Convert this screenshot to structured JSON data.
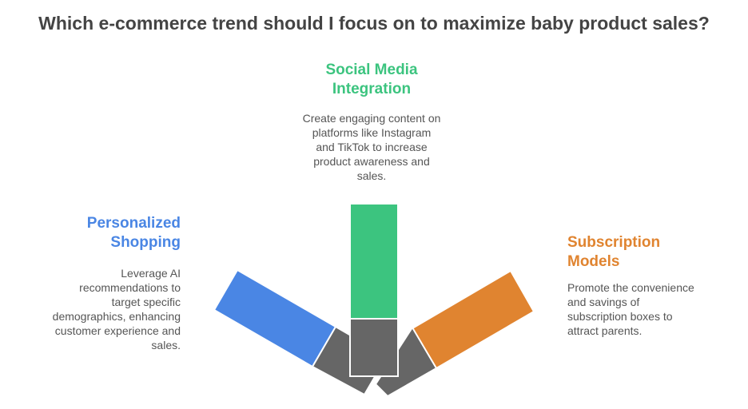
{
  "title": "Which e-commerce trend should I focus on to maximize baby product sales?",
  "options": {
    "social": {
      "heading": "Social Media\nIntegration",
      "description": "Create engaging content on\nplatforms like Instagram\nand TikTok to increase\nproduct awareness and\nsales.",
      "color": "#3cc47f"
    },
    "personalized": {
      "heading": "Personalized\nShopping",
      "description": "Leverage AI\nrecommendations to\ntarget specific\ndemographics, enhancing\ncustomer experience and\nsales.",
      "color": "#4a86e4"
    },
    "subscription": {
      "heading": "Subscription\nModels",
      "description": "Promote the convenience\nand savings of\nsubscription boxes to\nattract parents.",
      "color": "#e08430"
    }
  },
  "colors": {
    "title": "#444444",
    "body_text": "#555555",
    "handle": "#666666"
  }
}
